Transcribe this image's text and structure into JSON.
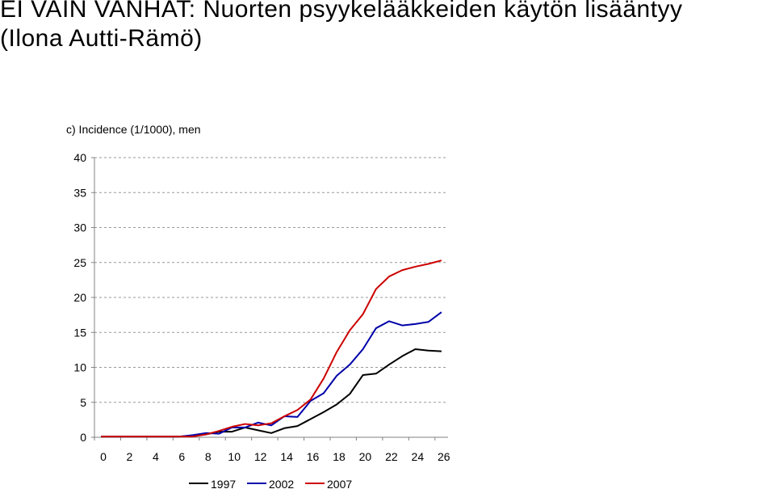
{
  "title": {
    "line1": "EI VAIN VANHAT: Nuorten psyykelääkkeiden käytön lisääntyy",
    "line2": "(Ilona Autti-Rämö)"
  },
  "chart_data": {
    "type": "line",
    "title": "c) Incidence (1/1000), men",
    "xlabel": "",
    "ylabel": "",
    "xlim": [
      0,
      27
    ],
    "ylim": [
      0,
      40
    ],
    "x_ticks": [
      0,
      2,
      4,
      6,
      8,
      10,
      12,
      14,
      16,
      18,
      20,
      22,
      24,
      26
    ],
    "y_ticks": [
      0,
      5,
      10,
      15,
      20,
      25,
      30,
      35,
      40
    ],
    "grid": "horizontal-dashed",
    "legend_position": "bottom",
    "x": [
      0,
      1,
      2,
      3,
      4,
      5,
      6,
      7,
      8,
      9,
      10,
      11,
      12,
      13,
      14,
      15,
      16,
      17,
      18,
      19,
      20,
      21,
      22,
      23,
      24,
      25,
      26
    ],
    "series": [
      {
        "name": "1997",
        "color": "#000000",
        "values": [
          0.1,
          0.1,
          0.1,
          0.1,
          0.1,
          0.1,
          0.1,
          0.2,
          0.4,
          0.8,
          0.8,
          1.4,
          1.0,
          0.6,
          1.3,
          1.6,
          2.6,
          3.6,
          4.7,
          6.2,
          8.9,
          9.1,
          10.4,
          11.6,
          12.6,
          12.4,
          12.3
        ]
      },
      {
        "name": "2002",
        "color": "#0000aa",
        "values": [
          0.1,
          0.1,
          0.1,
          0.1,
          0.1,
          0.1,
          0.1,
          0.3,
          0.6,
          0.5,
          1.4,
          1.4,
          2.1,
          1.7,
          3.0,
          2.9,
          5.2,
          6.3,
          8.8,
          10.4,
          12.6,
          15.6,
          16.6,
          16.0,
          16.2,
          16.5,
          17.9
        ]
      },
      {
        "name": "2007",
        "color": "#cc0000",
        "values": [
          0.1,
          0.1,
          0.1,
          0.1,
          0.1,
          0.1,
          0.1,
          0.1,
          0.4,
          0.9,
          1.5,
          1.9,
          1.7,
          2.0,
          3.0,
          3.9,
          5.4,
          8.4,
          12.2,
          15.3,
          17.6,
          21.2,
          23.0,
          23.9,
          24.4,
          24.8,
          25.3
        ]
      }
    ]
  }
}
